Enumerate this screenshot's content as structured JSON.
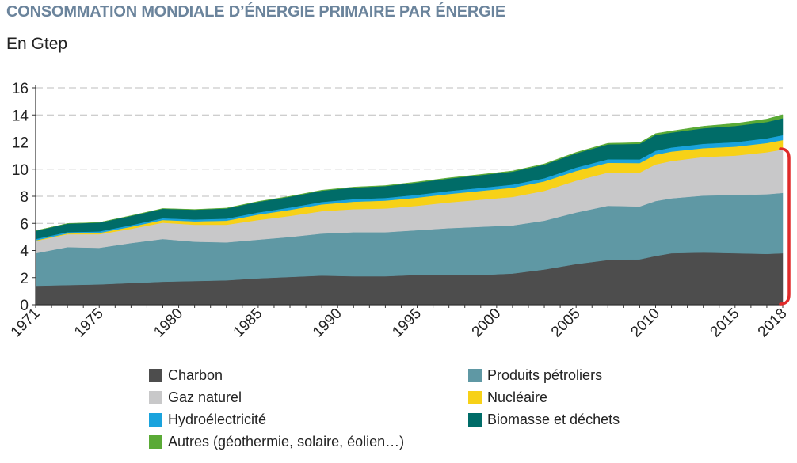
{
  "header": {
    "title": "CONSOMMATION MONDIALE D’ÉNERGIE PRIMAIRE PAR ÉNERGIE",
    "unit": "En Gtep"
  },
  "chart_data": {
    "type": "area",
    "stacked": true,
    "title": "CONSOMMATION MONDIALE D’ÉNERGIE PRIMAIRE PAR ÉNERGIE",
    "ylabel": "En Gtep",
    "xlabel": "",
    "ylim": [
      0,
      16
    ],
    "yticks": [
      "0",
      "2",
      "4",
      "6",
      "8",
      "10",
      "12",
      "14",
      "16"
    ],
    "xlim": [
      1971,
      2018
    ],
    "xticks": [
      "1971",
      "1975",
      "1980",
      "1985",
      "1990",
      "1995",
      "2000",
      "2005",
      "2010",
      "2015",
      "2018"
    ],
    "grid": true,
    "legend_position": "bottom",
    "x": [
      1971,
      1973,
      1975,
      1977,
      1979,
      1981,
      1983,
      1985,
      1987,
      1989,
      1991,
      1993,
      1995,
      1997,
      1999,
      2001,
      2003,
      2005,
      2007,
      2009,
      2010,
      2011,
      2013,
      2015,
      2017,
      2018
    ],
    "series": [
      {
        "name": "Charbon",
        "color": "#4d4d4d",
        "values": [
          1.4,
          1.45,
          1.5,
          1.6,
          1.7,
          1.75,
          1.8,
          1.95,
          2.05,
          2.15,
          2.1,
          2.1,
          2.2,
          2.2,
          2.2,
          2.3,
          2.6,
          3.0,
          3.3,
          3.35,
          3.6,
          3.8,
          3.85,
          3.8,
          3.75,
          3.8
        ]
      },
      {
        "name": "Produits pétroliers",
        "color": "#5f98a4",
        "values": [
          2.4,
          2.8,
          2.7,
          2.95,
          3.15,
          2.9,
          2.8,
          2.85,
          2.95,
          3.1,
          3.25,
          3.25,
          3.3,
          3.45,
          3.55,
          3.55,
          3.6,
          3.8,
          4.0,
          3.9,
          4.05,
          4.05,
          4.2,
          4.3,
          4.4,
          4.45
        ]
      },
      {
        "name": "Gaz naturel",
        "color": "#c8c8c9",
        "values": [
          0.9,
          0.95,
          1.0,
          1.05,
          1.2,
          1.25,
          1.3,
          1.45,
          1.55,
          1.65,
          1.7,
          1.75,
          1.8,
          1.9,
          2.0,
          2.1,
          2.2,
          2.35,
          2.45,
          2.5,
          2.7,
          2.75,
          2.85,
          2.9,
          3.1,
          3.2
        ]
      },
      {
        "name": "Nucléaire",
        "color": "#f7d117",
        "values": [
          0.05,
          0.06,
          0.1,
          0.15,
          0.2,
          0.25,
          0.3,
          0.4,
          0.45,
          0.5,
          0.55,
          0.58,
          0.6,
          0.62,
          0.65,
          0.68,
          0.7,
          0.72,
          0.72,
          0.7,
          0.72,
          0.7,
          0.65,
          0.66,
          0.68,
          0.7
        ]
      },
      {
        "name": "Hydroélectricité",
        "color": "#1aa3dd",
        "values": [
          0.1,
          0.1,
          0.11,
          0.12,
          0.13,
          0.14,
          0.15,
          0.16,
          0.17,
          0.18,
          0.19,
          0.2,
          0.21,
          0.22,
          0.22,
          0.23,
          0.23,
          0.25,
          0.26,
          0.27,
          0.29,
          0.3,
          0.32,
          0.33,
          0.35,
          0.36
        ]
      },
      {
        "name": "Biomasse et déchets",
        "color": "#006c68",
        "values": [
          0.6,
          0.62,
          0.65,
          0.68,
          0.7,
          0.72,
          0.75,
          0.78,
          0.8,
          0.83,
          0.85,
          0.87,
          0.9,
          0.92,
          0.94,
          0.96,
          1.0,
          1.05,
          1.1,
          1.15,
          1.17,
          1.1,
          1.15,
          1.2,
          1.2,
          1.25
        ]
      },
      {
        "name": "Autres (géothermie, solaire, éolien…)",
        "color": "#5aaa36",
        "values": [
          0.01,
          0.01,
          0.01,
          0.02,
          0.02,
          0.02,
          0.03,
          0.03,
          0.03,
          0.04,
          0.04,
          0.04,
          0.05,
          0.05,
          0.05,
          0.05,
          0.06,
          0.07,
          0.08,
          0.09,
          0.1,
          0.12,
          0.15,
          0.18,
          0.22,
          0.26
        ]
      }
    ]
  }
}
